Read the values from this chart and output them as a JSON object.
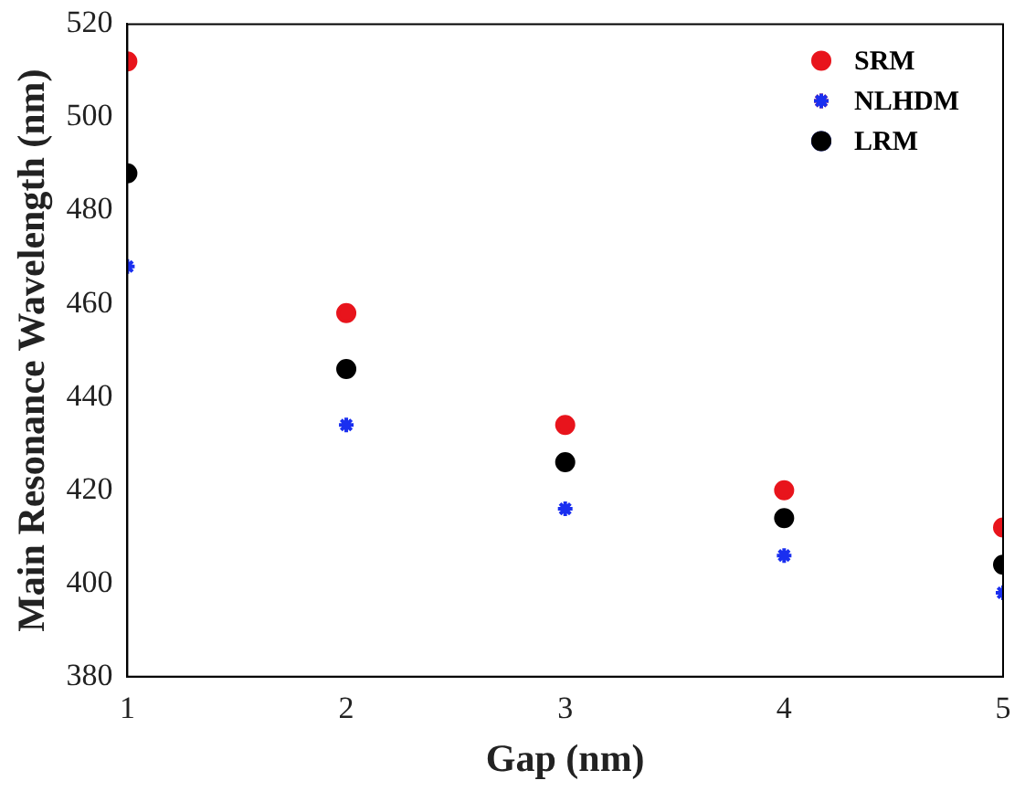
{
  "chart_data": {
    "type": "scatter",
    "xlabel": "Gap (nm)",
    "ylabel": "Main Resonance Wavelength (nm)",
    "x": [
      1,
      2,
      3,
      4,
      5
    ],
    "series": [
      {
        "name": "SRM",
        "color": "#e8141c",
        "marker": "circle",
        "values": [
          512,
          458,
          434,
          420,
          412
        ]
      },
      {
        "name": "NLHDM",
        "color": "#1a2ff0",
        "marker": "cross",
        "values": [
          468,
          434,
          416,
          406,
          398
        ]
      },
      {
        "name": "LRM",
        "color": "#000000",
        "marker": "circle",
        "values": [
          488,
          446,
          426,
          414,
          404
        ]
      }
    ],
    "xlim": [
      1,
      5
    ],
    "xticks": [
      1,
      2,
      3,
      4,
      5
    ],
    "ylim": [
      380,
      520
    ],
    "yticks": [
      380,
      400,
      420,
      440,
      460,
      480,
      500,
      520
    ],
    "grid": false,
    "legend": "top right"
  }
}
